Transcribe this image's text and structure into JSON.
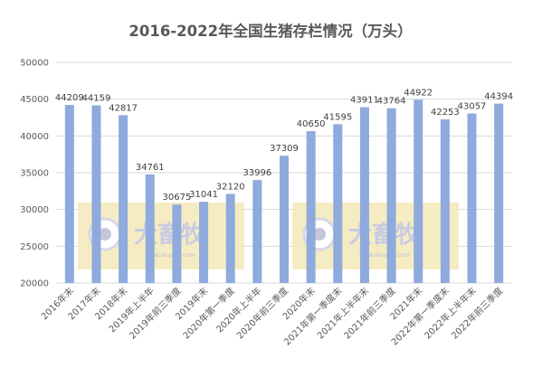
{
  "chart_data": {
    "type": "bar",
    "title": "2016-2022年全国生猪存栏情况（万头）",
    "xlabel": "",
    "ylabel": "",
    "ylim": [
      20000,
      50000
    ],
    "yticks": [
      20000,
      25000,
      30000,
      35000,
      40000,
      45000,
      50000
    ],
    "grid": true,
    "legend": "none",
    "bar_color": "#8faadc",
    "categories": [
      "2016年末",
      "2017年末",
      "2018年末",
      "2019年上半年",
      "2019年前三季度",
      "2019年末",
      "2020年第一季度",
      "2020年上半年",
      "2020年前三季度",
      "2020年末",
      "2021年第一季度末",
      "2021年上半年末",
      "2021年前三季度",
      "2021年末",
      "2022年第一季度末",
      "2022年上半年末",
      "2022年前三季度"
    ],
    "values": [
      44209,
      44159,
      42817,
      34761,
      30675,
      31041,
      32120,
      33996,
      37309,
      40650,
      41595,
      43911,
      43764,
      44922,
      42253,
      43057,
      44394
    ],
    "data_labels": [
      "44209",
      "44159",
      "42817",
      "34761",
      "30675",
      "31041",
      "32120",
      "33996",
      "37309",
      "40650",
      "41595",
      "43911",
      "43764",
      "44922",
      "42253",
      "43057",
      "44394"
    ]
  },
  "watermark": {
    "text": "大畜牧",
    "url": "www.dxumu.com",
    "color": "#f5e9b8"
  }
}
